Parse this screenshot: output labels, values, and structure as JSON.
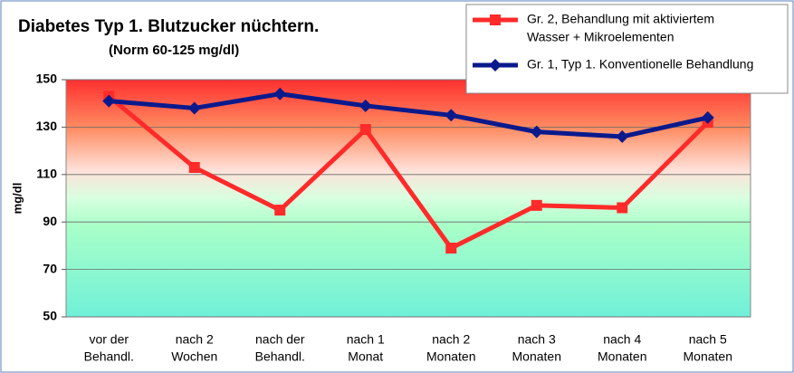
{
  "chart_data": {
    "type": "line",
    "title": "Diabetes Typ 1. Blutzucker nüchtern.",
    "subtitle": "(Norm 60-125 mg/dl)",
    "y_label": "mg/dl",
    "categories": [
      [
        "vor der",
        "Behandl."
      ],
      [
        "nach 2",
        "Wochen"
      ],
      [
        "nach der",
        "Behandl."
      ],
      [
        "nach 1",
        "Monat"
      ],
      [
        "nach 2",
        "Monaten"
      ],
      [
        "nach 3",
        "Monaten"
      ],
      [
        "nach 4",
        "Monaten"
      ],
      [
        "nach 5",
        "Monaten"
      ]
    ],
    "series": [
      {
        "name": [
          "Gr. 2, Behandlung mit aktiviertem",
          "Wasser + Mikroelementen"
        ],
        "color": "#ff2a2a",
        "marker": "square",
        "values": [
          143,
          113,
          95,
          129,
          79,
          97,
          96,
          132
        ]
      },
      {
        "name": [
          "Gr. 1, Typ 1. Konventionelle Behandlung"
        ],
        "color": "#0a1a8c",
        "marker": "diamond",
        "values": [
          141,
          138,
          144,
          139,
          135,
          128,
          126,
          134
        ]
      }
    ],
    "ylim": [
      50,
      150
    ],
    "yticks": [
      50,
      70,
      90,
      110,
      130,
      150
    ],
    "grid": true,
    "legend": "upper right"
  }
}
